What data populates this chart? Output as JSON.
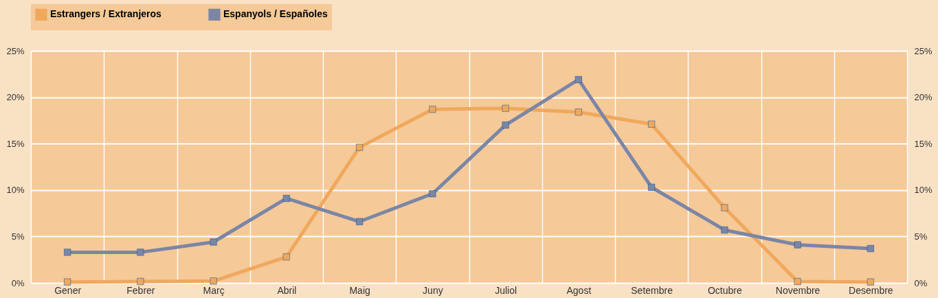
{
  "chart_data": {
    "type": "line",
    "categories": [
      "Gener",
      "Febrer",
      "Març",
      "Abril",
      "Maig",
      "Juny",
      "Juliol",
      "Agost",
      "Setembre",
      "Octubre",
      "Novembre",
      "Desembre"
    ],
    "series": [
      {
        "name": "Estrangers / Extranjeros",
        "color": "#f0a85c",
        "values": [
          0.1,
          0.15,
          0.2,
          2.8,
          14.6,
          18.7,
          18.8,
          18.4,
          17.1,
          8.1,
          0.15,
          0.1
        ]
      },
      {
        "name": "Espanyols / Españoles",
        "color": "#7b86a6",
        "values": [
          3.3,
          3.3,
          4.4,
          9.1,
          6.6,
          9.6,
          17.0,
          21.9,
          10.3,
          5.7,
          4.1,
          3.7
        ]
      }
    ],
    "ylim": [
      0,
      25
    ],
    "yticks": [
      {
        "value": 0,
        "label": "0%"
      },
      {
        "value": 5,
        "label": "5%"
      },
      {
        "value": 10,
        "label": "10%"
      },
      {
        "value": 15,
        "label": "15%"
      },
      {
        "value": 20,
        "label": "20%"
      },
      {
        "value": 25,
        "label": "25%"
      }
    ],
    "y2lim": [
      0,
      25
    ],
    "y2ticks": [
      {
        "value": 0,
        "label": "0%"
      },
      {
        "value": 5,
        "label": "5%"
      },
      {
        "value": 10,
        "label": "10%"
      },
      {
        "value": 15,
        "label": "15%"
      },
      {
        "value": 20,
        "label": "20%"
      },
      {
        "value": 25,
        "label": "25%"
      }
    ],
    "grid": true,
    "legend": "top",
    "marker": "square",
    "line_style": "solid"
  }
}
